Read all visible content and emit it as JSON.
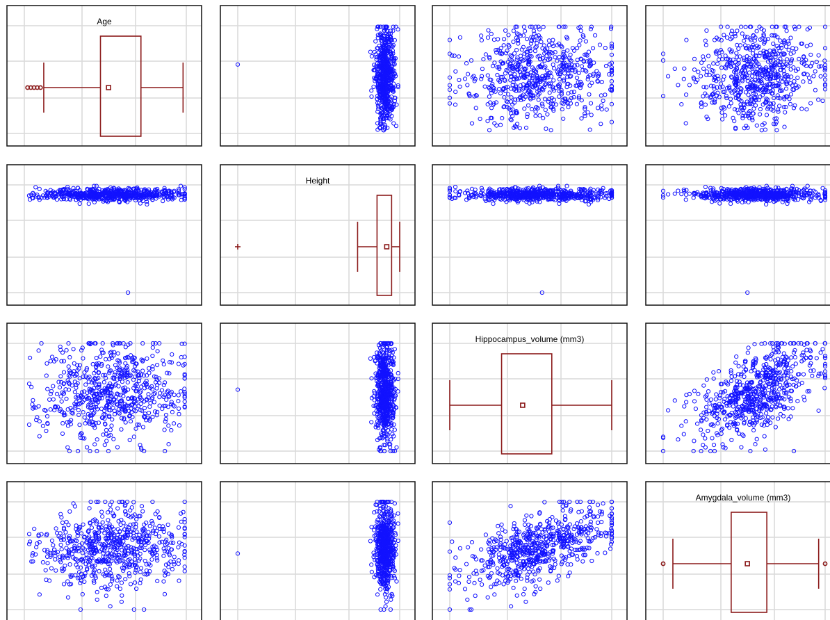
{
  "chart_data": {
    "type": "scatter",
    "variables": [
      "Age",
      "Height",
      "Hippocampus_volume (mm3)",
      "Amygdala_volume (mm3)"
    ],
    "diagonal": "boxplot",
    "off_diagonal": "scatter",
    "grid": true,
    "colors": {
      "points": "#1212ff",
      "boxplot": "#8b1a1a",
      "gridline": "#d9d9d9",
      "frame": "#111111"
    },
    "boxplots": [
      {
        "variable": "Age",
        "whisker_low": 0.12,
        "q1": 0.47,
        "median": 0.52,
        "q3": 0.72,
        "whisker_high": 0.98,
        "outliers": [
          0.02,
          0.04,
          0.06,
          0.08,
          0.1
        ]
      },
      {
        "variable": "Height",
        "whisker_low": 0.74,
        "q1": 0.86,
        "median": 0.92,
        "q3": 0.95,
        "whisker_high": 1.0,
        "outliers": [
          0.0
        ]
      },
      {
        "variable": "Hippocampus_volume (mm3)",
        "whisker_low": 0.0,
        "q1": 0.32,
        "median": 0.45,
        "q3": 0.63,
        "whisker_high": 1.0,
        "outliers": []
      },
      {
        "variable": "Amygdala_volume (mm3)",
        "whisker_low": 0.06,
        "q1": 0.42,
        "median": 0.52,
        "q3": 0.64,
        "whisker_high": 0.96,
        "outliers": [
          0.0,
          1.0
        ]
      }
    ]
  }
}
